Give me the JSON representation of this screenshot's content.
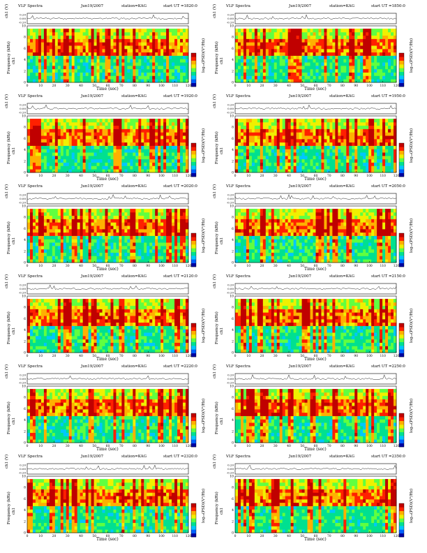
{
  "common": {
    "x_axis_title": "Time (sec)",
    "freq_axis_title": "Frequency (kHz)",
    "channel_label": "ch1",
    "trace_axis_title": "ch1 (V)",
    "colorbar_title": "log₁₀(PSD)(V²/Hz)",
    "x_ticks": [
      "0",
      "10",
      "20",
      "30",
      "40",
      "50",
      "60",
      "70",
      "80",
      "90",
      "100",
      "110",
      "120"
    ],
    "freq_ticks": [
      "0",
      "2",
      "4",
      "6",
      "8",
      "10"
    ],
    "trace_ticks": [
      "0.20",
      "0.00",
      "-0.20"
    ]
  },
  "colors": {
    "spectrogram_gradient": [
      "#0000a0",
      "#0060ff",
      "#00c8ff",
      "#00e090",
      "#60ff40",
      "#f0f000",
      "#ffb000",
      "#ff2000",
      "#c00000"
    ],
    "trace": "#202020"
  },
  "chart_data": [
    {
      "type": "heatmap",
      "title": "VLF Spectra",
      "date": "Jun19/2007",
      "station": "station=KAG",
      "start": "start UT =1820:0",
      "xlabel": "Time (sec)",
      "ylabel": "Frequency (kHz)",
      "xlim": [
        0,
        120
      ],
      "ylim": [
        0,
        10
      ],
      "intense_band_khz": [
        5,
        8
      ],
      "noise_ceiling_khz": 9.5
    },
    {
      "type": "heatmap",
      "title": "VLF Spectra",
      "date": "Jun19/2007",
      "station": "station=KAG",
      "start": "start UT =1850:0",
      "xlabel": "Time (sec)",
      "ylabel": "Frequency (kHz)",
      "xlim": [
        0,
        120
      ],
      "ylim": [
        0,
        10
      ],
      "intense_band_khz": [
        5,
        8
      ],
      "noise_ceiling_khz": 9.5
    },
    {
      "type": "heatmap",
      "title": "VLF Spectra",
      "date": "Jun19/2007",
      "station": "station=KAG",
      "start": "start UT =1920:0",
      "xlabel": "Time (sec)",
      "ylabel": "Frequency (kHz)",
      "xlim": [
        0,
        120
      ],
      "ylim": [
        0,
        10
      ],
      "intense_band_khz": [
        5,
        8
      ],
      "noise_ceiling_khz": 9.5
    },
    {
      "type": "heatmap",
      "title": "VLF Spectra",
      "date": "Jun19/2007",
      "station": "station=KAG",
      "start": "start UT =1950:0",
      "xlabel": "Time (sec)",
      "ylabel": "Frequency (kHz)",
      "xlim": [
        0,
        120
      ],
      "ylim": [
        0,
        10
      ],
      "intense_band_khz": [
        5,
        8
      ],
      "noise_ceiling_khz": 9.5
    },
    {
      "type": "heatmap",
      "title": "VLF Spectra",
      "date": "Jun19/2007",
      "station": "station=KAG",
      "start": "start UT =2020:0",
      "xlabel": "Time (sec)",
      "ylabel": "Frequency (kHz)",
      "xlim": [
        0,
        120
      ],
      "ylim": [
        0,
        10
      ],
      "intense_band_khz": [
        5,
        8
      ],
      "noise_ceiling_khz": 9.5
    },
    {
      "type": "heatmap",
      "title": "VLF Spectra",
      "date": "Jun19/2007",
      "station": "station=KAG",
      "start": "start UT =2050:0",
      "xlabel": "Time (sec)",
      "ylabel": "Frequency (kHz)",
      "xlim": [
        0,
        120
      ],
      "ylim": [
        0,
        10
      ],
      "intense_band_khz": [
        5,
        8
      ],
      "noise_ceiling_khz": 9.5
    },
    {
      "type": "heatmap",
      "title": "VLF Spectra",
      "date": "Jun19/2007",
      "station": "station=KAG",
      "start": "start UT =2120:0",
      "xlabel": "Time (sec)",
      "ylabel": "Frequency (kHz)",
      "xlim": [
        0,
        120
      ],
      "ylim": [
        0,
        10
      ],
      "intense_band_khz": [
        5,
        8
      ],
      "noise_ceiling_khz": 9.5
    },
    {
      "type": "heatmap",
      "title": "VLF Spectra",
      "date": "Jun19/2007",
      "station": "station=KAG",
      "start": "start UT =2150:0",
      "xlabel": "Time (sec)",
      "ylabel": "Frequency (kHz)",
      "xlim": [
        0,
        120
      ],
      "ylim": [
        0,
        10
      ],
      "intense_band_khz": [
        5,
        8
      ],
      "noise_ceiling_khz": 9.5
    },
    {
      "type": "heatmap",
      "title": "VLF Spectra",
      "date": "Jun19/2007",
      "station": "station=KAG",
      "start": "start UT =2220:0",
      "xlabel": "Time (sec)",
      "ylabel": "Frequency (kHz)",
      "xlim": [
        0,
        120
      ],
      "ylim": [
        0,
        10
      ],
      "intense_band_khz": [
        5,
        8
      ],
      "noise_ceiling_khz": 9.5
    },
    {
      "type": "heatmap",
      "title": "VLF Spectra",
      "date": "Jun19/2007",
      "station": "station=KAG",
      "start": "start UT =2250:0",
      "xlabel": "Time (sec)",
      "ylabel": "Frequency (kHz)",
      "xlim": [
        0,
        120
      ],
      "ylim": [
        0,
        10
      ],
      "intense_band_khz": [
        5,
        8
      ],
      "noise_ceiling_khz": 9.5
    },
    {
      "type": "heatmap",
      "title": "VLF Spectra",
      "date": "Jun19/2007",
      "station": "station=KAG",
      "start": "start UT =2320:0",
      "xlabel": "Time (sec)",
      "ylabel": "Frequency (kHz)",
      "xlim": [
        0,
        120
      ],
      "ylim": [
        0,
        10
      ],
      "intense_band_khz": [
        5,
        8
      ],
      "noise_ceiling_khz": 9.5
    },
    {
      "type": "heatmap",
      "title": "VLF Spectra",
      "date": "Jun19/2007",
      "station": "station=KAG",
      "start": "start UT =2350:0",
      "xlabel": "Time (sec)",
      "ylabel": "Frequency (kHz)",
      "xlim": [
        0,
        120
      ],
      "ylim": [
        0,
        10
      ],
      "intense_band_khz": [
        5,
        8
      ],
      "noise_ceiling_khz": 9.5
    }
  ]
}
